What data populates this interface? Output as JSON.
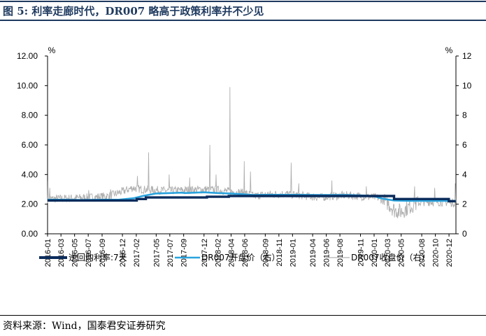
{
  "figure": {
    "title": "图 5:  利率走廊时代，DR007 略高于政策利率并不少见",
    "source": "资料来源：Wind，国泰君安证券研究"
  },
  "colors": {
    "title": "#1f3a5f",
    "reverse_repo": "#0b2c5c",
    "dr007_open": "#29a3dd",
    "dr007_close": "#b0b0b0",
    "axis": "#000000"
  },
  "chart_data": {
    "type": "line",
    "left_axis": {
      "unit": "%",
      "ylim": [
        0,
        12
      ],
      "ticks": [
        "0.00",
        "2.00",
        "4.00",
        "6.00",
        "8.00",
        "10.00",
        "12.00"
      ]
    },
    "right_axis": {
      "unit": "%",
      "ylim": [
        0,
        12
      ],
      "ticks": [
        "0",
        "2",
        "4",
        "6",
        "8",
        "10",
        "12"
      ]
    },
    "x_range": [
      "2016-01-01",
      "2021-01-01"
    ],
    "x_ticks": [
      "2016-01",
      "2016-03",
      "2016-05",
      "2016-07",
      "2016-09",
      "2016-12",
      "2017-02",
      "2017-05",
      "2017-07",
      "2017-09",
      "2017-12",
      "2018-02",
      "2018-04",
      "2018-06",
      "2018-09",
      "2018-11",
      "2019-01",
      "2019-04",
      "2019-06",
      "2019-08",
      "2019-11",
      "2020-01",
      "2020-03",
      "2020-05",
      "2020-08",
      "2020-10",
      "2020-12"
    ],
    "grid": false,
    "legend_position": "bottom",
    "series": [
      {
        "name": "逆回购利率:7天",
        "axis": "left",
        "style": "step",
        "points": [
          [
            "2016-01-01",
            2.25
          ],
          [
            "2017-02-03",
            2.35
          ],
          [
            "2017-03-16",
            2.45
          ],
          [
            "2017-12-14",
            2.5
          ],
          [
            "2018-03-22",
            2.55
          ],
          [
            "2020-03-30",
            2.35
          ],
          [
            "2020-11-30",
            2.2
          ]
        ]
      },
      {
        "name": "DR007开盘价（右）",
        "axis": "right",
        "style": "line",
        "points": [
          [
            "2016-01-01",
            2.3
          ],
          [
            "2016-03-01",
            2.3
          ],
          [
            "2016-06-01",
            2.28
          ],
          [
            "2016-09-01",
            2.3
          ],
          [
            "2016-11-15",
            2.3
          ],
          [
            "2017-01-20",
            2.4
          ],
          [
            "2017-03-01",
            2.55
          ],
          [
            "2017-05-01",
            2.72
          ],
          [
            "2017-07-01",
            2.75
          ],
          [
            "2017-08-25",
            2.78
          ],
          [
            "2017-09-05",
            2.75
          ],
          [
            "2017-12-01",
            2.8
          ],
          [
            "2018-02-01",
            2.75
          ],
          [
            "2018-04-01",
            2.72
          ],
          [
            "2018-06-01",
            2.66
          ],
          [
            "2018-07-10",
            2.62
          ],
          [
            "2018-09-01",
            2.63
          ],
          [
            "2019-01-01",
            2.63
          ],
          [
            "2019-05-01",
            2.62
          ],
          [
            "2019-09-01",
            2.62
          ],
          [
            "2019-12-01",
            2.58
          ],
          [
            "2020-01-10",
            2.5
          ],
          [
            "2020-02-05",
            2.38
          ],
          [
            "2020-03-31",
            2.25
          ],
          [
            "2020-06-01",
            2.22
          ],
          [
            "2020-09-01",
            2.22
          ],
          [
            "2020-12-31",
            2.22
          ]
        ]
      },
      {
        "name": "DR007收盘价（右）",
        "axis": "right",
        "style": "noisy",
        "points": [
          [
            "2016-01-01",
            2.35
          ],
          [
            "2016-04-01",
            2.4
          ],
          [
            "2016-07-01",
            2.45
          ],
          [
            "2016-10-01",
            2.55
          ],
          [
            "2016-12-01",
            2.85
          ],
          [
            "2017-01-15",
            3.1
          ],
          [
            "2017-03-01",
            3.0
          ],
          [
            "2017-05-01",
            2.95
          ],
          [
            "2017-07-01",
            2.9
          ],
          [
            "2017-09-01",
            2.95
          ],
          [
            "2017-12-01",
            3.0
          ],
          [
            "2018-02-01",
            2.95
          ],
          [
            "2018-04-01",
            2.85
          ],
          [
            "2018-06-01",
            2.75
          ],
          [
            "2018-07-15",
            2.55
          ],
          [
            "2018-09-01",
            2.65
          ],
          [
            "2018-12-01",
            2.7
          ],
          [
            "2019-02-01",
            2.6
          ],
          [
            "2019-05-01",
            2.45
          ],
          [
            "2019-07-01",
            2.55
          ],
          [
            "2019-09-01",
            2.6
          ],
          [
            "2019-12-01",
            2.5
          ],
          [
            "2020-01-15",
            2.45
          ],
          [
            "2020-03-01",
            2.1
          ],
          [
            "2020-04-01",
            1.6
          ],
          [
            "2020-05-01",
            1.5
          ],
          [
            "2020-06-15",
            1.9
          ],
          [
            "2020-08-01",
            2.15
          ],
          [
            "2020-10-01",
            2.15
          ],
          [
            "2020-12-31",
            2.1
          ]
        ],
        "spikes": [
          [
            "2016-01-04",
            3.6
          ],
          [
            "2016-01-12",
            3.1
          ],
          [
            "2016-07-04",
            2.95
          ],
          [
            "2016-10-10",
            3.0
          ],
          [
            "2017-02-07",
            3.9
          ],
          [
            "2017-03-28",
            5.5
          ],
          [
            "2017-06-28",
            4.0
          ],
          [
            "2017-09-28",
            3.8
          ],
          [
            "2017-12-28",
            6.0
          ],
          [
            "2018-01-25",
            4.0
          ],
          [
            "2018-03-28",
            9.9
          ],
          [
            "2018-05-30",
            4.9
          ],
          [
            "2018-06-28",
            4.2
          ],
          [
            "2018-12-27",
            4.8
          ],
          [
            "2019-01-30",
            3.4
          ],
          [
            "2019-06-26",
            3.6
          ],
          [
            "2019-11-28",
            3.2
          ],
          [
            "2020-06-30",
            3.2
          ],
          [
            "2020-09-29",
            3.1
          ],
          [
            "2020-12-30",
            3.4
          ]
        ]
      }
    ]
  }
}
